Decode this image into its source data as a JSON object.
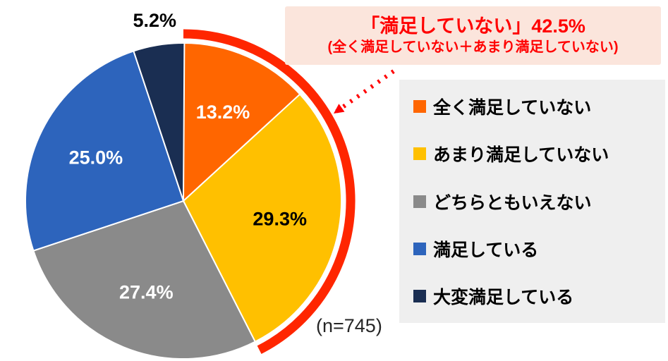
{
  "chart_data": {
    "type": "pie",
    "title": "",
    "categories": [
      "全く満足していない",
      "あまり満足していない",
      "どちらともいえない",
      "満足している",
      "大変満足している"
    ],
    "values": [
      13.2,
      29.3,
      27.4,
      25.0,
      5.2
    ],
    "unit": "%",
    "start_angle_deg": 0,
    "direction": "clockwise",
    "legend_position": "right",
    "slices": [
      {
        "label": "全く満足していない",
        "value": 13.2,
        "pct_label": "13.2%",
        "color": "#FF6600",
        "text_color": "#FFFFFF",
        "label_placement": "inside"
      },
      {
        "label": "あまり満足していない",
        "value": 29.3,
        "pct_label": "29.3%",
        "color": "#FFC000",
        "text_color": "#000000",
        "label_placement": "inside"
      },
      {
        "label": "どちらともいえない",
        "value": 27.4,
        "pct_label": "27.4%",
        "color": "#8A8A8A",
        "text_color": "#FFFFFF",
        "label_placement": "inside"
      },
      {
        "label": "満足している",
        "value": 25.0,
        "pct_label": "25.0%",
        "color": "#2D64BC",
        "text_color": "#FFFFFF",
        "label_placement": "inside"
      },
      {
        "label": "大変満足している",
        "value": 5.2,
        "pct_label": "5.2%",
        "color": "#1A2E52",
        "text_color": "#000000",
        "label_placement": "outside"
      }
    ],
    "highlight": {
      "slice_indexes": [
        0,
        1
      ],
      "total_pct": 42.5,
      "arc_color": "#FF2600"
    },
    "sample_size": "(n=745)"
  },
  "callout": {
    "line1": "「満足していない」42.5%",
    "line2": "(全く満足していない＋あまり満足していない)",
    "text_color": "#FF0000",
    "bg_color": "#FBE5DC",
    "arrow_color": "#FF0000"
  },
  "legend": {
    "bg_color": "#EFEFEF",
    "items": [
      {
        "label": "全く満足していない",
        "color": "#FF6600"
      },
      {
        "label": "あまり満足していない",
        "color": "#FFC000"
      },
      {
        "label": "どちらともいえない",
        "color": "#8A8A8A"
      },
      {
        "label": "満足している",
        "color": "#2D64BC"
      },
      {
        "label": "大変満足している",
        "color": "#1A2E52"
      }
    ]
  },
  "footnote": {
    "text": "(n=745)"
  }
}
